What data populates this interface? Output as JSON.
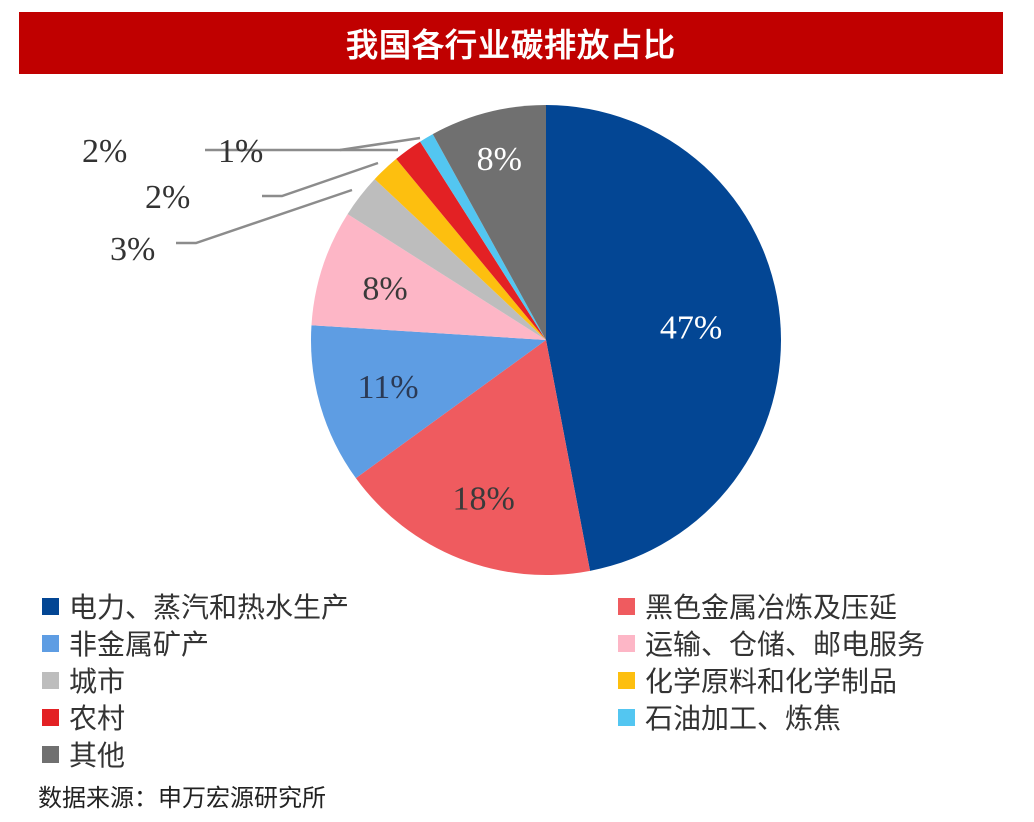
{
  "title": "我国各行业碳排放占比",
  "source": "数据来源：申万宏源研究所",
  "chart_data": {
    "type": "pie",
    "title": "我国各行业碳排放占比",
    "start_angle_deg": 0,
    "direction": "clockwise",
    "slices": [
      {
        "label": "电力、蒸汽和热水生产",
        "value": 47,
        "display": "47%",
        "color": "#034694"
      },
      {
        "label": "黑色金属冶炼及压延",
        "value": 18,
        "display": "18%",
        "color": "#ef5b5f"
      },
      {
        "label": "非金属矿产",
        "value": 11,
        "display": "11%",
        "color": "#5e9de3"
      },
      {
        "label": "运输、仓储、邮电服务",
        "value": 8,
        "display": "8%",
        "color": "#fdb6c6"
      },
      {
        "label": "城市",
        "value": 3,
        "display": "3%",
        "color": "#bdbdbd"
      },
      {
        "label": "化学原料和化学制品",
        "value": 2,
        "display": "2%",
        "color": "#fdbf0f"
      },
      {
        "label": "农村",
        "value": 2,
        "display": "2%",
        "color": "#e32124"
      },
      {
        "label": "石油加工、炼焦",
        "value": 1,
        "display": "1%",
        "color": "#53c6f1"
      },
      {
        "label": "其他",
        "value": 8,
        "display": "8%",
        "color": "#707070"
      }
    ],
    "legend_position": "bottom"
  },
  "legend": {
    "left": [
      {
        "label": "电力、蒸汽和热水生产",
        "color": "#034694"
      },
      {
        "label": "非金属矿产",
        "color": "#5e9de3"
      },
      {
        "label": "城市",
        "color": "#bdbdbd"
      },
      {
        "label": "农村",
        "color": "#e32124"
      },
      {
        "label": "其他",
        "color": "#707070"
      }
    ],
    "right": [
      {
        "label": "黑色金属冶炼及压延",
        "color": "#ef5b5f"
      },
      {
        "label": "运输、仓储、邮电服务",
        "color": "#fdb6c6"
      },
      {
        "label": "化学原料和化学制品",
        "color": "#fdbf0f"
      },
      {
        "label": "石油加工、炼焦",
        "color": "#53c6f1"
      }
    ]
  }
}
